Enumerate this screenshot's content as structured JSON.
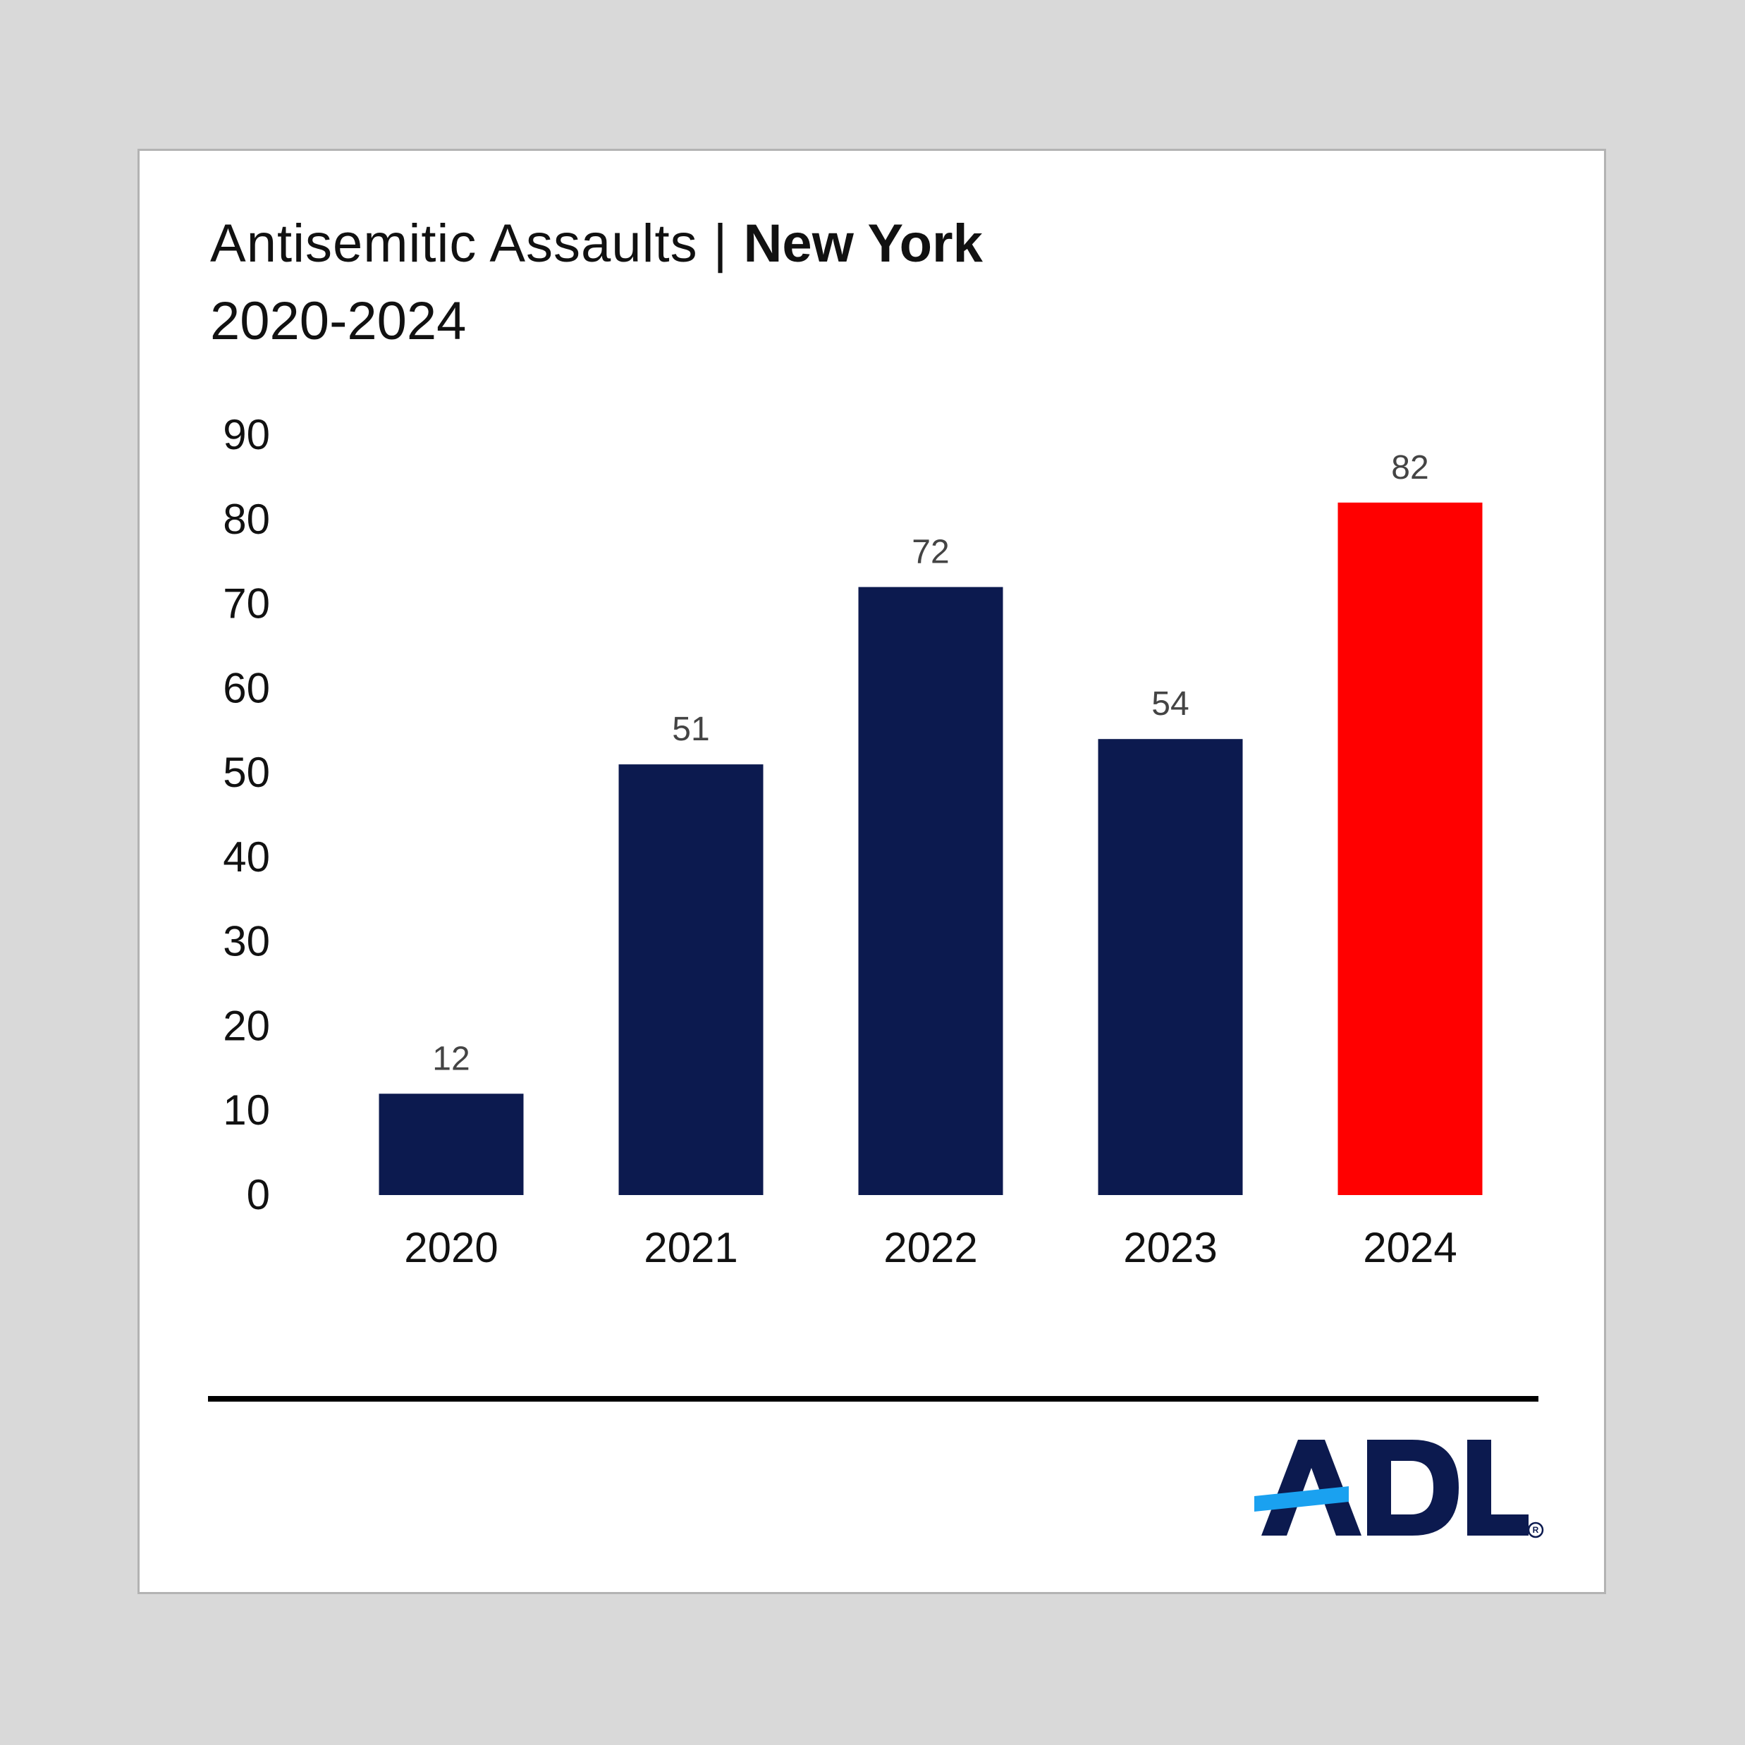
{
  "header": {
    "title_main": "Antisemitic Assaults | ",
    "title_location": "New York",
    "subtitle": "2020-2024"
  },
  "logo": {
    "text": "ADL",
    "registered_mark": "®",
    "colors": {
      "text": "#0c1a4f",
      "accent": "#1aa1f0"
    }
  },
  "chart_data": {
    "type": "bar",
    "title": "Antisemitic Assaults | New York",
    "subtitle": "2020-2024",
    "xlabel": "",
    "ylabel": "",
    "categories": [
      "2020",
      "2021",
      "2022",
      "2023",
      "2024"
    ],
    "values": [
      12,
      51,
      72,
      54,
      82
    ],
    "data_labels": [
      "12",
      "51",
      "72",
      "54",
      "82"
    ],
    "ylim": [
      0,
      90
    ],
    "yticks": [
      0,
      10,
      20,
      30,
      40,
      50,
      60,
      70,
      80,
      90
    ],
    "grid": false,
    "legend": "none",
    "bar_colors": [
      "#0c1a4f",
      "#0c1a4f",
      "#0c1a4f",
      "#0c1a4f",
      "#ff0000"
    ]
  }
}
